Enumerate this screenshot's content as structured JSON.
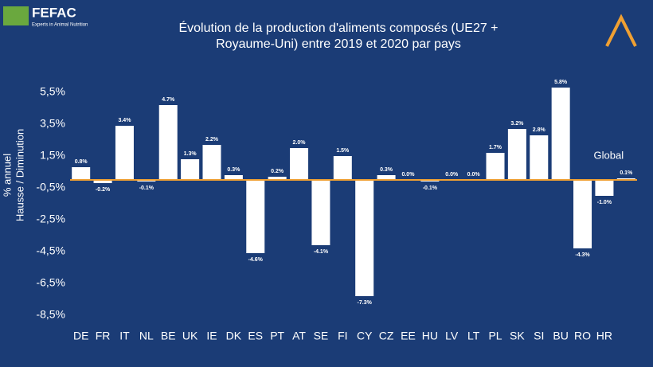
{
  "logo": {
    "name": "FEFAC",
    "tagline": "Experts in Animal Nutrition"
  },
  "chart_data": {
    "type": "bar",
    "title": [
      "Évolution de la production d'aliments composés (UE27 +",
      "Royaume-Uni) entre 2019 et 2020 par pays"
    ],
    "y_label": [
      "% annuel",
      "Hausse / Diminution"
    ],
    "annotation": "Global",
    "categories": [
      "DE",
      "FR",
      "IT",
      "NL",
      "BE",
      "UK",
      "IE",
      "DK",
      "ES",
      "PT",
      "AT",
      "SE",
      "FI",
      "CY",
      "CZ",
      "EE",
      "HU",
      "LV",
      "LT",
      "PL",
      "SK",
      "SI",
      "BU",
      "RO",
      "HR",
      null
    ],
    "values": [
      0.8,
      -0.2,
      3.4,
      -0.1,
      4.7,
      1.3,
      2.2,
      0.3,
      -4.6,
      0.2,
      2.0,
      -4.1,
      1.5,
      -7.3,
      0.3,
      0.0,
      -0.1,
      0.0,
      0.0,
      1.7,
      3.2,
      2.8,
      5.8,
      -4.3,
      -1.0,
      0.1
    ],
    "value_labels": [
      "0.8%",
      "-0.2%",
      "3.4%",
      "-0.1%",
      "4.7%",
      "1.3%",
      "2.2%",
      "0.3%",
      "-4.6%",
      "0.2%",
      "2.0%",
      "-4.1%",
      "1.5%",
      "-7.3%",
      "0.3%",
      "0.0%",
      "-0.1%",
      "0.0%",
      "0.0%",
      "1.7%",
      "3.2%",
      "2.8%",
      "5.8%",
      "-4.3%",
      "-1.0%",
      "0.1%"
    ],
    "color": "#ffffff",
    "zero_line_color": "#f0a032",
    "ylim": [
      -9.2,
      6.8
    ],
    "yticks": [
      {
        "value": 5.5,
        "label": "5,5%"
      },
      {
        "value": 3.5,
        "label": "3,5%"
      },
      {
        "value": 1.5,
        "label": "1,5%"
      },
      {
        "value": -0.5,
        "label": "-0,5%"
      },
      {
        "value": -2.5,
        "label": "-2,5%"
      },
      {
        "value": -4.5,
        "label": "-4,5%"
      },
      {
        "value": -6.5,
        "label": "-6,5%"
      },
      {
        "value": -8.5,
        "label": "-8,5%"
      }
    ]
  }
}
